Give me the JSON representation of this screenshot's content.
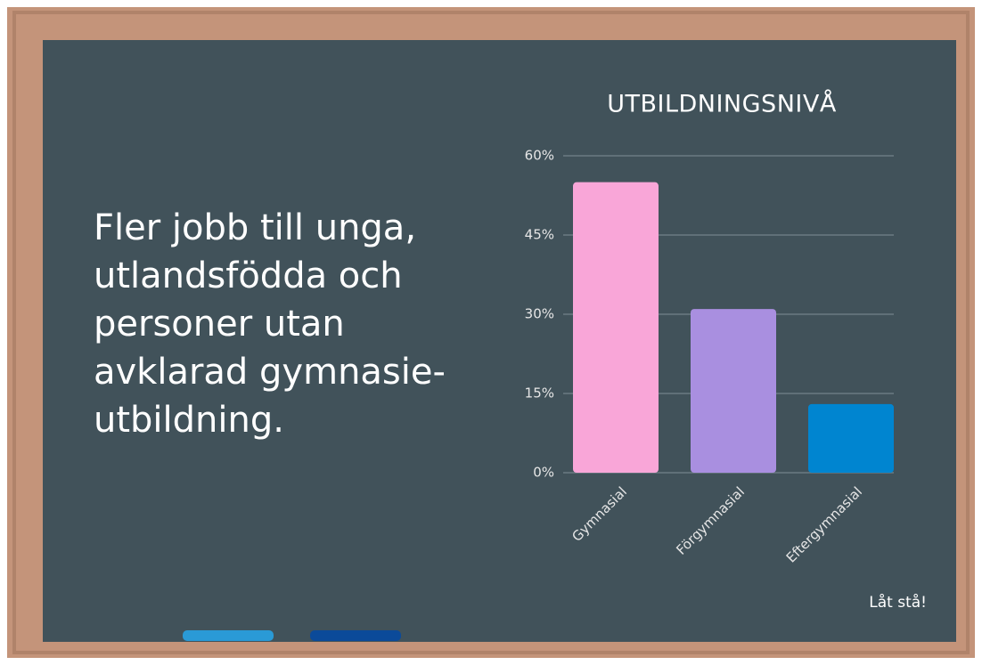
{
  "board": {
    "heading_lines": [
      "Fler jobb till unga,",
      "utlandsfödda och",
      "personer utan",
      "avklarad gymnasie-",
      "utbildning."
    ],
    "note": "Låt stå!"
  },
  "chart_data": {
    "type": "bar",
    "title": "UTBILDNINGSNIVÅ",
    "categories": [
      "Gymnasial",
      "Förgymnasial",
      "Eftergymnasial"
    ],
    "values": [
      55,
      31,
      13
    ],
    "colors": [
      "#f9a6d8",
      "#a98fe0",
      "#0085d0"
    ],
    "ylim": [
      0,
      60
    ],
    "yticks": [
      {
        "value": 0,
        "label": "0%"
      },
      {
        "value": 15,
        "label": "15%"
      },
      {
        "value": 30,
        "label": "30%"
      },
      {
        "value": 45,
        "label": "45%"
      },
      {
        "value": 60,
        "label": "60%"
      }
    ],
    "grid": true
  }
}
